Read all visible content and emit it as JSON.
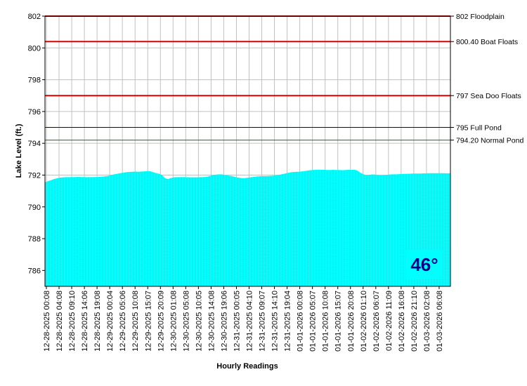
{
  "chart_data": {
    "type": "area",
    "title": "",
    "xlabel": "Hourly Readings",
    "ylabel": "Lake Level (ft.)",
    "ylim": [
      785,
      802
    ],
    "y_ticks": [
      786,
      788,
      790,
      792,
      794,
      796,
      798,
      800,
      802
    ],
    "grid": true,
    "x_tick_labels": [
      "12-28-2025 00:08",
      "12-28-2025 04:08",
      "12-28-2025 09:10",
      "12-28-2025 14:06",
      "12-28-2025 19:08",
      "12-29-2025 00:04",
      "12-29-2025 05:06",
      "12-29-2025 10:08",
      "12-29-2025 15:07",
      "12-29-2025 20:09",
      "12-30-2025 01:08",
      "12-30-2025 05:08",
      "12-30-2025 10:05",
      "12-30-2025 14:08",
      "12-30-2025 19:06",
      "12-31-2025 00:05",
      "12-31-2025 04:10",
      "12-31-2025 09:07",
      "12-31-2025 14:10",
      "12-31-2025 19:04",
      "01-01-2026 00:08",
      "01-01-2026 05:07",
      "01-01-2026 10:08",
      "01-01-2026 15:07",
      "01-01-2026 20:08",
      "01-02-2026 01:10",
      "01-02-2026 06:07",
      "01-02-2026 11:09",
      "01-02-2026 16:08",
      "01-02-2026 21:10",
      "01-03-2026 02:08",
      "01-03-2026 06:08"
    ],
    "series": [
      {
        "color": "#00ffff",
        "values": [
          791.55,
          791.62,
          791.68,
          791.75,
          791.8,
          791.84,
          791.86,
          791.87,
          791.87,
          791.88,
          791.88,
          791.89,
          791.88,
          791.88,
          791.87,
          791.87,
          791.88,
          791.88,
          791.89,
          791.9,
          791.92,
          791.95,
          792.0,
          792.05,
          792.08,
          792.12,
          792.15,
          792.18,
          792.2,
          792.21,
          792.22,
          792.21,
          792.22,
          792.23,
          792.25,
          792.24,
          792.18,
          792.12,
          792.08,
          792.0,
          791.8,
          791.75,
          791.82,
          791.86,
          791.87,
          791.87,
          791.88,
          791.87,
          791.86,
          791.86,
          791.86,
          791.86,
          791.87,
          791.88,
          791.9,
          791.95,
          792.0,
          792.03,
          792.05,
          792.04,
          792.0,
          791.97,
          791.94,
          791.9,
          791.85,
          791.82,
          791.8,
          791.82,
          791.85,
          791.88,
          791.9,
          791.92,
          791.93,
          791.93,
          791.94,
          791.95,
          791.96,
          791.98,
          792.02,
          792.06,
          792.1,
          792.14,
          792.18,
          792.2,
          792.21,
          792.22,
          792.24,
          792.27,
          792.3,
          792.32,
          792.33,
          792.34,
          792.33,
          792.33,
          792.32,
          792.32,
          792.33,
          792.32,
          792.32,
          792.31,
          792.32,
          792.33,
          792.33,
          792.34,
          792.28,
          792.15,
          792.05,
          792.0,
          792.02,
          792.04,
          792.03,
          792.0,
          791.98,
          792.0,
          792.02,
          792.04,
          792.05,
          792.05,
          792.06,
          792.07,
          792.08,
          792.08,
          792.09,
          792.1,
          792.1,
          792.1,
          792.11,
          792.11,
          792.12,
          792.12,
          792.12,
          792.12,
          792.12,
          792.12,
          792.11,
          792.12
        ]
      }
    ],
    "reference_lines": [
      {
        "value": 802,
        "label": "802 Floodplain",
        "color": "#e00000"
      },
      {
        "value": 800.4,
        "label": "800.40 Boat Floats",
        "color": "#e00000"
      },
      {
        "value": 797,
        "label": "797 Sea Doo Floats",
        "color": "#e00000"
      },
      {
        "value": 795,
        "label": "795 Full Pond",
        "color": "#000080"
      },
      {
        "value": 794.2,
        "label": "794.20 Normal Pond",
        "color": "#008000"
      }
    ]
  },
  "temperature": {
    "text": "46°",
    "bg_color": "#00ffff",
    "text_color": "#00008b"
  }
}
